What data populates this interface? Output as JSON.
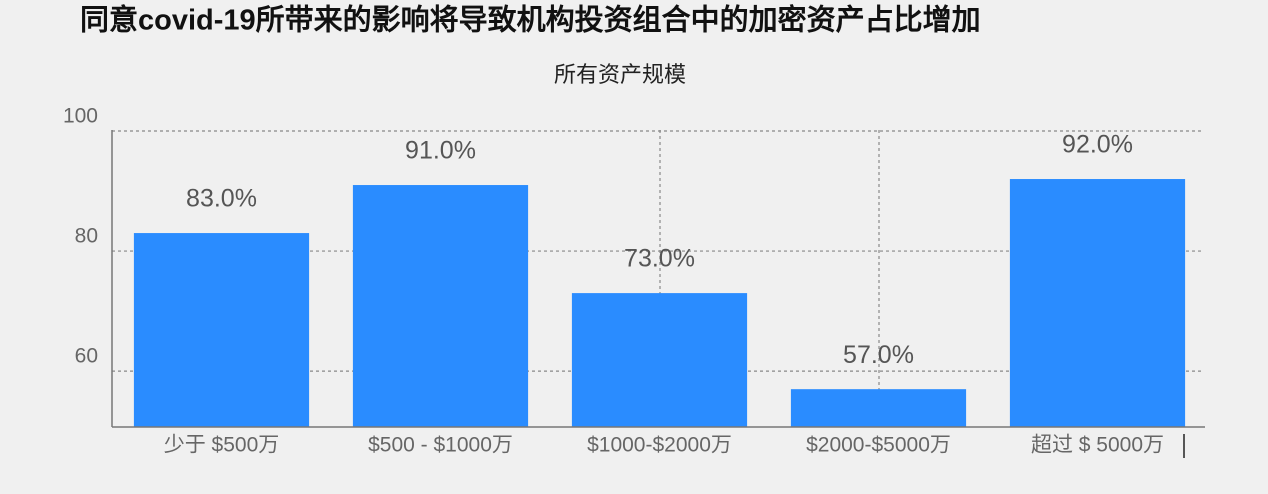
{
  "chart_data": {
    "type": "bar",
    "title": "同意covid-19所带来的影响将导致机构投资组合中的加密资产占比增加",
    "subtitle": "所有资产规模",
    "categories": [
      "少于 $500万",
      "$500 - $1000万",
      "$1000-$2000万",
      "$2000-$5000万",
      "超过 $ 5000万"
    ],
    "values": [
      83,
      91,
      73,
      57,
      92
    ],
    "value_labels": [
      "83.0%",
      "91.0%",
      "73.0%",
      "57.0%",
      "92.0%"
    ],
    "color": "#2a8cff",
    "ylim": [
      50.7,
      100
    ],
    "yticks": [
      60,
      80,
      100
    ],
    "grid": true
  }
}
